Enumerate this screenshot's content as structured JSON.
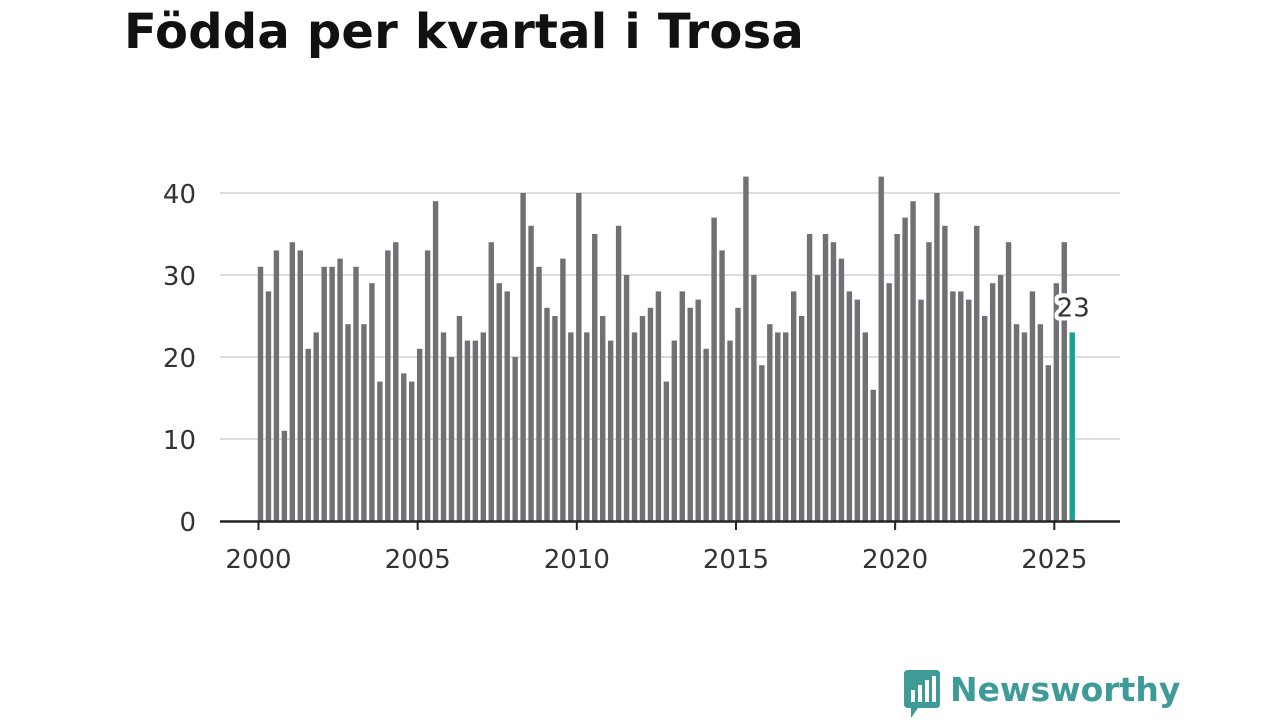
{
  "title": "Födda per kvartal i Trosa",
  "brand": {
    "name": "Newsworthy",
    "color": "#3e9b97"
  },
  "colors": {
    "bar": "#707075",
    "highlight": "#17a197",
    "grid": "#dddddd",
    "axis": "#222222"
  },
  "chart_data": {
    "type": "bar",
    "title": "Födda per kvartal i Trosa",
    "xlabel": "",
    "ylabel": "",
    "ylim": [
      0,
      45
    ],
    "yticks": [
      0,
      10,
      20,
      30,
      40
    ],
    "xticks": [
      2000,
      2005,
      2010,
      2015,
      2020,
      2025
    ],
    "categories": [
      "2000 Q1",
      "2000 Q2",
      "2000 Q3",
      "2000 Q4",
      "2001 Q1",
      "2001 Q2",
      "2001 Q3",
      "2001 Q4",
      "2002 Q1",
      "2002 Q2",
      "2002 Q3",
      "2002 Q4",
      "2003 Q1",
      "2003 Q2",
      "2003 Q3",
      "2003 Q4",
      "2004 Q1",
      "2004 Q2",
      "2004 Q3",
      "2004 Q4",
      "2005 Q1",
      "2005 Q2",
      "2005 Q3",
      "2005 Q4",
      "2006 Q1",
      "2006 Q2",
      "2006 Q3",
      "2006 Q4",
      "2007 Q1",
      "2007 Q2",
      "2007 Q3",
      "2007 Q4",
      "2008 Q1",
      "2008 Q2",
      "2008 Q3",
      "2008 Q4",
      "2009 Q1",
      "2009 Q2",
      "2009 Q3",
      "2009 Q4",
      "2010 Q1",
      "2010 Q2",
      "2010 Q3",
      "2010 Q4",
      "2011 Q1",
      "2011 Q2",
      "2011 Q3",
      "2011 Q4",
      "2012 Q1",
      "2012 Q2",
      "2012 Q3",
      "2012 Q4",
      "2013 Q1",
      "2013 Q2",
      "2013 Q3",
      "2013 Q4",
      "2014 Q1",
      "2014 Q2",
      "2014 Q3",
      "2014 Q4",
      "2015 Q1",
      "2015 Q2",
      "2015 Q3",
      "2015 Q4",
      "2016 Q1",
      "2016 Q2",
      "2016 Q3",
      "2016 Q4",
      "2017 Q1",
      "2017 Q2",
      "2017 Q3",
      "2017 Q4",
      "2018 Q1",
      "2018 Q2",
      "2018 Q3",
      "2018 Q4",
      "2019 Q1",
      "2019 Q2",
      "2019 Q3",
      "2019 Q4",
      "2020 Q1",
      "2020 Q2",
      "2020 Q3",
      "2020 Q4",
      "2021 Q1",
      "2021 Q2",
      "2021 Q3",
      "2021 Q4",
      "2022 Q1",
      "2022 Q2",
      "2022 Q3",
      "2022 Q4",
      "2023 Q1",
      "2023 Q2",
      "2023 Q3",
      "2023 Q4",
      "2024 Q1",
      "2024 Q2",
      "2024 Q3",
      "2024 Q4",
      "2025 Q1",
      "2025 Q2",
      "2025 Q3"
    ],
    "values": [
      31,
      28,
      33,
      11,
      34,
      33,
      21,
      23,
      31,
      31,
      32,
      24,
      31,
      24,
      29,
      17,
      33,
      34,
      18,
      17,
      21,
      33,
      39,
      23,
      20,
      25,
      22,
      22,
      23,
      34,
      29,
      28,
      20,
      40,
      36,
      31,
      26,
      25,
      32,
      23,
      40,
      23,
      35,
      25,
      22,
      36,
      30,
      23,
      25,
      26,
      28,
      17,
      22,
      28,
      26,
      27,
      21,
      37,
      33,
      22,
      26,
      42,
      30,
      19,
      24,
      23,
      23,
      28,
      25,
      35,
      30,
      35,
      34,
      32,
      28,
      27,
      23,
      16,
      42,
      29,
      35,
      37,
      39,
      27,
      34,
      40,
      36,
      28,
      28,
      27,
      36,
      25,
      29,
      30,
      34,
      24,
      23,
      28,
      24,
      19,
      29,
      34,
      23
    ],
    "highlight_index": 102,
    "highlight_label": "23"
  }
}
